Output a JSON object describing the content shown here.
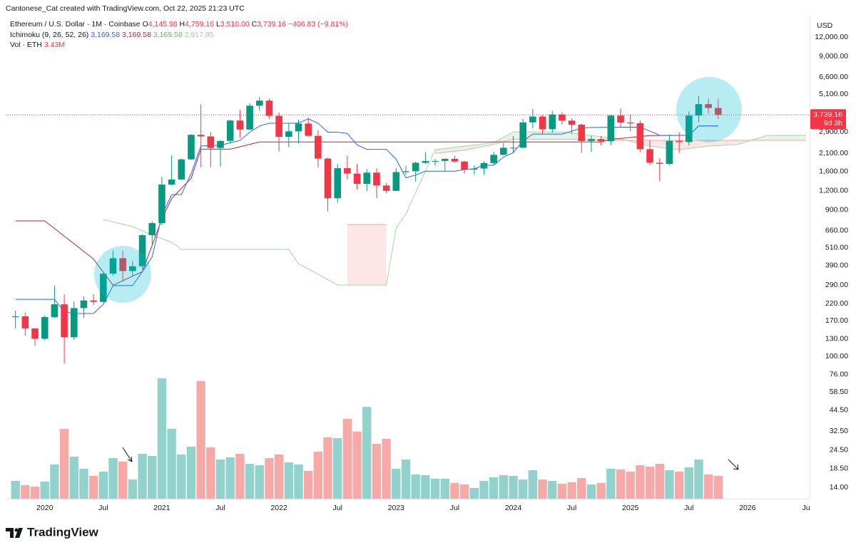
{
  "header": {
    "credit": "Cantonese_Cat created with TradingView.com, Oct 22, 2025 21:23 UTC",
    "symbol": "Ethereum / U.S. Dollar · 1M · Coinbase",
    "ohlc": [
      {
        "key": "O",
        "value": "4,145.98"
      },
      {
        "key": "H",
        "value": "4,759.16"
      },
      {
        "key": "L",
        "value": "3,510.00"
      },
      {
        "key": "C",
        "value": "3,739.16"
      }
    ],
    "change": "−406.83 (−9.81%)",
    "ichimoku_label": "Ichimoku (9, 26, 52, 26)",
    "ichimoku_values": [
      "3,169.58",
      "3,169.58",
      "3,169.58",
      "2,917.85"
    ],
    "vol_label": "Vol · ETH",
    "vol_value": "3.43M",
    "currency": "USD",
    "brand": "TradingView"
  },
  "chart_data": {
    "type": "candlestick",
    "log_scale": true,
    "x": [
      "2019-10",
      "2019-11",
      "2019-12",
      "2020-01",
      "2020-02",
      "2020-03",
      "2020-04",
      "2020-05",
      "2020-06",
      "2020-07",
      "2020-08",
      "2020-09",
      "2020-10",
      "2020-11",
      "2020-12",
      "2021-01",
      "2021-02",
      "2021-03",
      "2021-04",
      "2021-05",
      "2021-06",
      "2021-07",
      "2021-08",
      "2021-09",
      "2021-10",
      "2021-11",
      "2021-12",
      "2022-01",
      "2022-02",
      "2022-03",
      "2022-04",
      "2022-05",
      "2022-06",
      "2022-07",
      "2022-08",
      "2022-09",
      "2022-10",
      "2022-11",
      "2022-12",
      "2023-01",
      "2023-02",
      "2023-03",
      "2023-04",
      "2023-05",
      "2023-06",
      "2023-07",
      "2023-08",
      "2023-09",
      "2023-10",
      "2023-11",
      "2023-12",
      "2024-01",
      "2024-02",
      "2024-03",
      "2024-04",
      "2024-05",
      "2024-06",
      "2024-07",
      "2024-08",
      "2024-09",
      "2024-10",
      "2024-11",
      "2024-12",
      "2025-01",
      "2025-02",
      "2025-03",
      "2025-04",
      "2025-05",
      "2025-06",
      "2025-07",
      "2025-08",
      "2025-09",
      "2025-10"
    ],
    "open": [
      180,
      182,
      152,
      130,
      180,
      218,
      133,
      206,
      231,
      226,
      345,
      435,
      359,
      386,
      615,
      737,
      1314,
      1418,
      1918,
      2772,
      2706,
      2275,
      2530,
      3433,
      3000,
      4288,
      4630,
      3683,
      2688,
      2920,
      3280,
      2730,
      1940,
      1070,
      1680,
      1550,
      1328,
      1572,
      1296,
      1196,
      1585,
      1605,
      1821,
      1869,
      1873,
      1934,
      1856,
      1645,
      1671,
      1815,
      2052,
      2282,
      2283,
      3340,
      3647,
      3015,
      3760,
      3430,
      3230,
      2525,
      2600,
      2517,
      3700,
      3330,
      3300,
      2235,
      1822,
      1793,
      2530,
      2487,
      3700,
      4390,
      4145.98
    ],
    "high": [
      198,
      193,
      152,
      184,
      288,
      253,
      227,
      245,
      254,
      347,
      488,
      488,
      417,
      622,
      758,
      1475,
      2040,
      1943,
      2797,
      4380,
      2890,
      2550,
      3470,
      4027,
      4460,
      4890,
      4780,
      3880,
      3290,
      3480,
      3580,
      2960,
      1970,
      1790,
      2030,
      1790,
      1660,
      1680,
      1350,
      1680,
      1740,
      1850,
      2140,
      1930,
      1950,
      2030,
      1880,
      1750,
      1865,
      2140,
      2450,
      2720,
      3520,
      4090,
      3730,
      3980,
      3890,
      3560,
      3280,
      2730,
      2720,
      3740,
      4110,
      3745,
      3440,
      2550,
      1950,
      2790,
      2880,
      3940,
      4955,
      4770,
      4759.16
    ],
    "low": [
      152,
      136,
      117,
      127,
      178,
      90,
      128,
      178,
      216,
      224,
      335,
      308,
      335,
      370,
      535,
      715,
      1300,
      1410,
      1900,
      1700,
      1700,
      1720,
      2450,
      2650,
      2970,
      3980,
      3500,
      2160,
      2300,
      2450,
      2700,
      1700,
      880,
      1000,
      1420,
      1220,
      1190,
      1070,
      1150,
      1190,
      1530,
      1370,
      1790,
      1740,
      1620,
      1830,
      1550,
      1530,
      1520,
      1770,
      2040,
      2100,
      2260,
      3060,
      2810,
      2860,
      3240,
      2810,
      2110,
      2150,
      2360,
      2360,
      3100,
      2920,
      2120,
      1760,
      1385,
      1750,
      2110,
      2370,
      3350,
      3820,
      3510
    ],
    "close": [
      182,
      152,
      130,
      180,
      218,
      133,
      206,
      231,
      226,
      345,
      435,
      359,
      386,
      615,
      737,
      1314,
      1418,
      1918,
      2772,
      2706,
      2275,
      2530,
      3433,
      3000,
      4288,
      4630,
      3683,
      2688,
      2920,
      3280,
      2730,
      1940,
      1070,
      1680,
      1550,
      1328,
      1572,
      1296,
      1196,
      1585,
      1605,
      1821,
      1869,
      1873,
      1934,
      1856,
      1645,
      1671,
      1815,
      2052,
      2282,
      2283,
      3340,
      3647,
      3015,
      3760,
      3430,
      3230,
      2525,
      2600,
      2517,
      3700,
      3330,
      3300,
      2235,
      1822,
      1793,
      2530,
      2487,
      3700,
      4390,
      4145.98,
      3739.16
    ],
    "volume": [
      2.68,
      2.04,
      1.82,
      2.57,
      5.15,
      10.5,
      6.32,
      4.5,
      3.43,
      4.07,
      6.11,
      5.57,
      2.89,
      6.75,
      6.43,
      18.1,
      10.5,
      6.65,
      7.83,
      17.7,
      7.72,
      5.9,
      6.22,
      6.75,
      5.25,
      5.04,
      6.11,
      6.65,
      5.47,
      5.15,
      4.18,
      7.07,
      9.22,
      9.11,
      12.0,
      10.1,
      13.8,
      8.25,
      9.0,
      4.5,
      5.9,
      3.64,
      3.54,
      3.0,
      3.0,
      2.36,
      2.14,
      1.61,
      2.68,
      3.22,
      3.54,
      3.43,
      2.89,
      4.29,
      2.89,
      2.68,
      2.25,
      2.47,
      3.11,
      2.14,
      2.36,
      4.5,
      4.4,
      4.07,
      5.04,
      4.82,
      5.25,
      4.29,
      4.07,
      4.72,
      5.9,
      3.64,
      3.43
    ],
    "up_color": "#089981",
    "down_color": "#f23645",
    "volume_up_color": "#92d2cc",
    "volume_down_color": "#f7a9a7",
    "tenkan": {
      "color": "#2962ff",
      "values": [
        235,
        235,
        235,
        235,
        235,
        195,
        190,
        190,
        190,
        218,
        289,
        289,
        289,
        356,
        443,
        826,
        1128,
        1132,
        1552,
        2344,
        2357,
        2375,
        2457,
        2547,
        2880,
        3165,
        3295,
        3295,
        3295,
        3305,
        3525,
        3295,
        2885,
        2885,
        2830,
        2380,
        2230,
        2230,
        2230,
        1920,
        1455,
        1515,
        1605,
        1605,
        1605,
        1605,
        1645,
        1665,
        1755,
        1755,
        1985,
        2120,
        2520,
        2805,
        2805,
        2805,
        2805,
        2930,
        3070,
        3095,
        3100,
        3100,
        3110,
        3110,
        3110,
        2935,
        2748,
        2748,
        2748,
        2748,
        3170,
        3170,
        3170
      ]
    },
    "kijun": {
      "color": "#b22833",
      "x": [
        "2019-10",
        "2020-01",
        "2020-06",
        "2020-08",
        "2020-11",
        "2021-01",
        "2021-02",
        "2021-04",
        "2021-05",
        "2021-08",
        "2021-11",
        "2022-12",
        "2024-10",
        "2024-11",
        "2025-03",
        "2025-07",
        "2025-08",
        "2025-10"
      ],
      "values": [
        762,
        762,
        430,
        290,
        356,
        782,
        1065,
        1444,
        2235,
        2235,
        2490,
        2490,
        2490,
        2590,
        2740,
        2748,
        3170,
        3170
      ]
    },
    "cloud": {
      "x": [
        "2020-07",
        "2020-10",
        "2020-12",
        "2021-02",
        "2021-03",
        "2021-09",
        "2022-02",
        "2022-03",
        "2022-05",
        "2022-07",
        "2022-08",
        "2022-12",
        "2023-01",
        "2023-02",
        "2023-03",
        "2023-05",
        "2023-08",
        "2023-11",
        "2024-01",
        "2024-06",
        "2024-12",
        "2025-03",
        "2025-06",
        "2025-09",
        "2025-12",
        "2026-03",
        "2026-07"
      ],
      "span_a": [
        778,
        700,
        615,
        553,
        497,
        497,
        497,
        401,
        342,
        291,
        291,
        291,
        684,
        847,
        1167,
        2218,
        2339,
        2466,
        2897,
        2897,
        2600,
        2339,
        2218,
        2339,
        2400,
        2750,
        2750
      ],
      "span_b": [
        null,
        null,
        null,
        null,
        null,
        null,
        null,
        null,
        null,
        null,
        722,
        722,
        null,
        null,
        null,
        2100,
        2200,
        2400,
        2600,
        2600,
        2550,
        2550,
        2550,
        2550,
        2550,
        2550,
        2550
      ],
      "span_a_color": "#a5d6a7",
      "span_b_color": "#f4a3a3",
      "up_fill": "#e3f3e4",
      "down_fill": "#fde3e3"
    },
    "last_price_label": "3,739.16",
    "countdown": "9d 3h",
    "xlim": [
      "2019-09",
      "2026-07"
    ],
    "xticks": [
      {
        "value": "2020-01",
        "label": "2020"
      },
      {
        "value": "2020-07",
        "label": "Jul"
      },
      {
        "value": "2021-01",
        "label": "2021"
      },
      {
        "value": "2021-07",
        "label": "Jul"
      },
      {
        "value": "2022-01",
        "label": "2022"
      },
      {
        "value": "2022-07",
        "label": "Jul"
      },
      {
        "value": "2023-01",
        "label": "2023"
      },
      {
        "value": "2023-07",
        "label": "Jul"
      },
      {
        "value": "2024-01",
        "label": "2024"
      },
      {
        "value": "2024-07",
        "label": "Jul"
      },
      {
        "value": "2025-01",
        "label": "2025"
      },
      {
        "value": "2025-07",
        "label": "Jul"
      },
      {
        "value": "2026-01",
        "label": "2026"
      },
      {
        "value": "2026-07",
        "label": "Ju"
      }
    ],
    "ylim": [
      11.8,
      15200
    ],
    "yticks": [
      {
        "value": 12000,
        "label": "12,000.00"
      },
      {
        "value": 9000,
        "label": "9,000.00"
      },
      {
        "value": 6600,
        "label": "6,600.00"
      },
      {
        "value": 5100,
        "label": "5,100.00"
      },
      {
        "value": 2900,
        "label": "2,900.00"
      },
      {
        "value": 2100,
        "label": "2,100.00"
      },
      {
        "value": 1600,
        "label": "1,600.00"
      },
      {
        "value": 1200,
        "label": "1,200.00"
      },
      {
        "value": 900,
        "label": "900.00"
      },
      {
        "value": 660,
        "label": "660.00"
      },
      {
        "value": 510,
        "label": "510.00"
      },
      {
        "value": 390,
        "label": "390.00"
      },
      {
        "value": 290,
        "label": "290.00"
      },
      {
        "value": 220,
        "label": "220.00"
      },
      {
        "value": 170,
        "label": "170.00"
      },
      {
        "value": 130,
        "label": "130.00"
      },
      {
        "value": 100,
        "label": "100.00"
      },
      {
        "value": 76,
        "label": "76.00"
      },
      {
        "value": 58.5,
        "label": "58.50"
      },
      {
        "value": 44.5,
        "label": "44.50"
      },
      {
        "value": 32.5,
        "label": "32.50"
      },
      {
        "value": 24.5,
        "label": "24.50"
      },
      {
        "value": 18.5,
        "label": "18.50"
      },
      {
        "value": 14,
        "label": "14.00"
      }
    ]
  }
}
